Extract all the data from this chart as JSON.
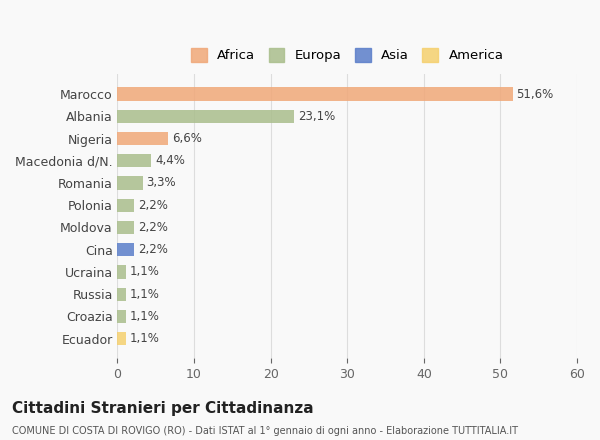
{
  "categories": [
    "Marocco",
    "Albania",
    "Nigeria",
    "Macedonia d/N.",
    "Romania",
    "Polonia",
    "Moldova",
    "Cina",
    "Ucraina",
    "Russia",
    "Croazia",
    "Ecuador"
  ],
  "values": [
    51.6,
    23.1,
    6.6,
    4.4,
    3.3,
    2.2,
    2.2,
    2.2,
    1.1,
    1.1,
    1.1,
    1.1
  ],
  "labels": [
    "51,6%",
    "23,1%",
    "6,6%",
    "4,4%",
    "3,3%",
    "2,2%",
    "2,2%",
    "2,2%",
    "1,1%",
    "1,1%",
    "1,1%",
    "1,1%"
  ],
  "bar_colors": [
    "#F0A878",
    "#AABE8C",
    "#F0A878",
    "#AABE8C",
    "#AABE8C",
    "#AABE8C",
    "#AABE8C",
    "#5B7EC9",
    "#AABE8C",
    "#AABE8C",
    "#AABE8C",
    "#F5D06E"
  ],
  "continent": [
    "Africa",
    "Europa",
    "Africa",
    "Europa",
    "Europa",
    "Europa",
    "Europa",
    "Asia",
    "Europa",
    "Europa",
    "Europa",
    "America"
  ],
  "legend_labels": [
    "Africa",
    "Europa",
    "Asia",
    "America"
  ],
  "legend_colors": [
    "#F0A878",
    "#AABE8C",
    "#5B7EC9",
    "#F5D06E"
  ],
  "title": "Cittadini Stranieri per Cittadinanza",
  "subtitle": "COMUNE DI COSTA DI ROVIGO (RO) - Dati ISTAT al 1° gennaio di ogni anno - Elaborazione TUTTITALIA.IT",
  "xlim": [
    0,
    60
  ],
  "xticks": [
    0,
    10,
    20,
    30,
    40,
    50,
    60
  ],
  "background_color": "#f9f9f9",
  "grid_color": "#dddddd",
  "bar_alpha": 0.85
}
